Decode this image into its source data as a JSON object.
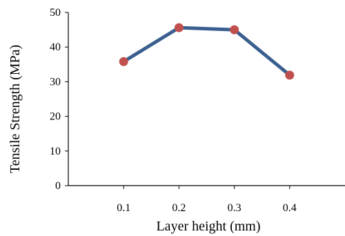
{
  "chart_data": {
    "type": "line",
    "xlabel": "Layer height (mm)",
    "ylabel": "Tensile Strength  (MPa)",
    "x": [
      0.1,
      0.2,
      0.3,
      0.4
    ],
    "x_tick_labels": [
      "0.1",
      "0.2",
      "0.3",
      "0.4"
    ],
    "xlim": [
      0.0,
      0.5
    ],
    "ylim": [
      0,
      50
    ],
    "y_ticks": [
      0,
      10,
      20,
      30,
      40,
      50
    ],
    "y_tick_labels": [
      "0",
      "10",
      "20",
      "30",
      "40",
      "50"
    ],
    "series": [
      {
        "values": [
          35.8,
          45.6,
          45.0,
          31.9
        ],
        "line_color": "#3a5f8f",
        "marker_color": "#c0504d"
      }
    ],
    "grid": false,
    "legend": "none"
  }
}
